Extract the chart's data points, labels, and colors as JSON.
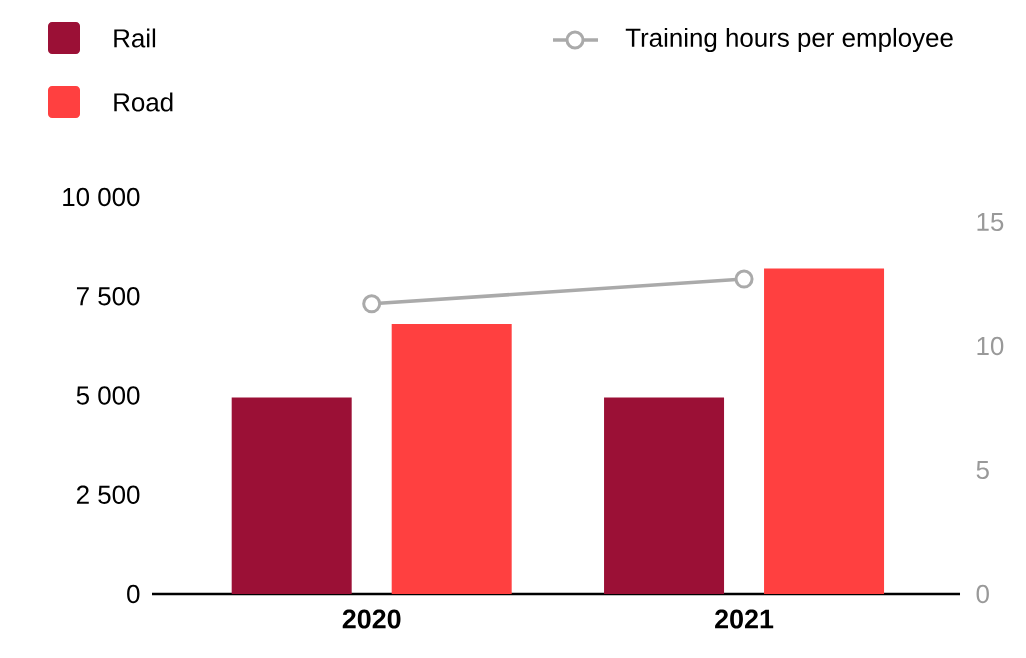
{
  "chart_data": {
    "type": "bar",
    "categories": [
      "2020",
      "2021"
    ],
    "series": [
      {
        "name": "Rail",
        "color": "#9b1036",
        "values": [
          4950,
          4950
        ]
      },
      {
        "name": "Road",
        "color": "#ff4040",
        "values": [
          6800,
          8200
        ]
      },
      {
        "name": "Training hours per employee",
        "type": "line",
        "axis": "y2",
        "color": "#aaaaaa",
        "marker": "circle",
        "values": [
          11.7,
          12.7
        ]
      }
    ],
    "ylim": [
      0,
      10000
    ],
    "yticks": [
      0,
      {
        "value": 2500,
        "label": "2 500"
      },
      {
        "value": 5000,
        "label": "5 000"
      },
      {
        "value": 7500,
        "label": "7 500"
      },
      {
        "value": 10000,
        "label": "10 000"
      }
    ],
    "y2lim": [
      0,
      15
    ],
    "y2ticks": [
      0,
      5,
      10,
      15
    ],
    "legend": "top",
    "grid": false
  }
}
